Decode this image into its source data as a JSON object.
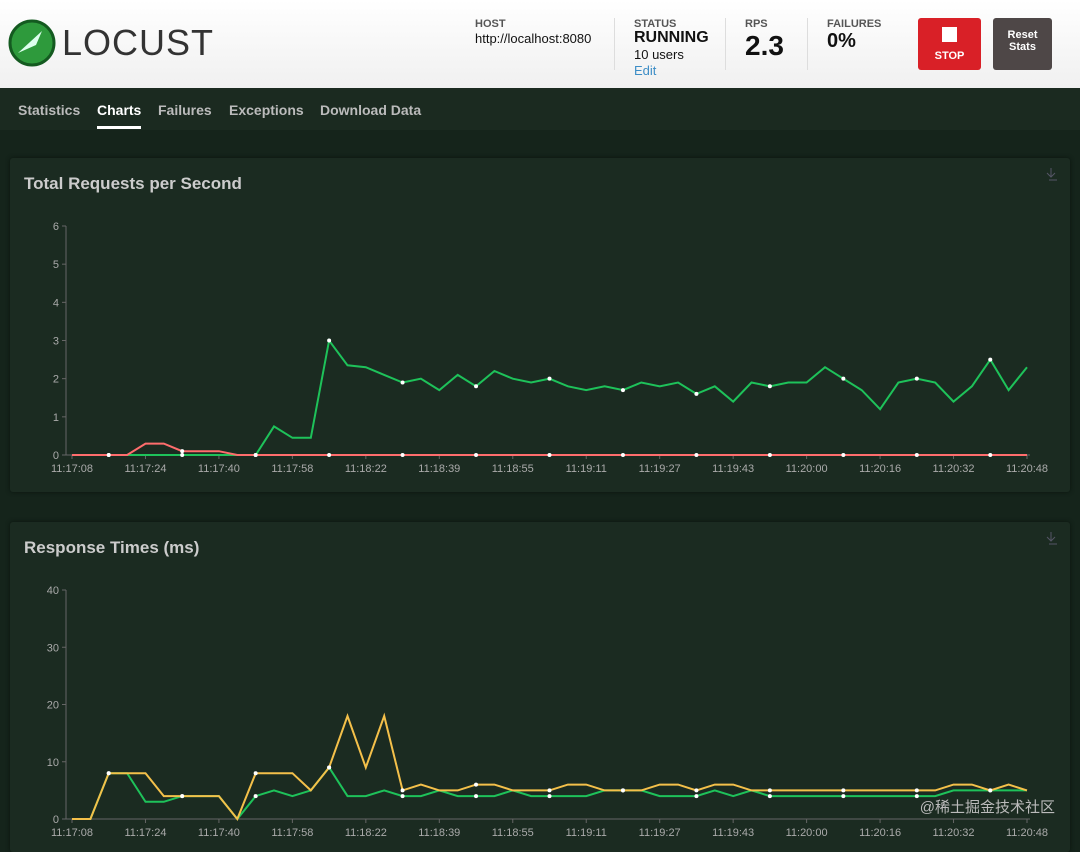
{
  "header": {
    "logo": "LOCUST",
    "host_label": "HOST",
    "host": "http://localhost:8080",
    "status_label": "STATUS",
    "status": "RUNNING",
    "users": "10 users",
    "edit": "Edit",
    "rps_label": "RPS",
    "rps": "2.3",
    "failures_label": "FAILURES",
    "failures": "0%",
    "stop": "STOP",
    "reset": "Reset Stats"
  },
  "tabs": [
    "Statistics",
    "Charts",
    "Failures",
    "Exceptions",
    "Download Data"
  ],
  "watermark": "@稀土掘金技术社区",
  "chart_data": [
    {
      "type": "line",
      "title": "Total Requests per Second",
      "categories": [
        "11:17:08",
        null,
        null,
        null,
        "11:17:24",
        null,
        null,
        null,
        "11:17:40",
        null,
        null,
        null,
        "11:17:58",
        null,
        null,
        null,
        "11:18:22",
        null,
        null,
        null,
        "11:18:39",
        null,
        null,
        null,
        "11:18:55",
        null,
        null,
        null,
        "11:19:11",
        null,
        null,
        null,
        "11:19:27",
        null,
        null,
        null,
        "11:19:43",
        null,
        null,
        null,
        "11:20:00",
        null,
        null,
        null,
        "11:20:16",
        null,
        null,
        null,
        "11:20:32",
        null,
        null,
        null,
        "11:20:48"
      ],
      "ylim": [
        0,
        6
      ],
      "yticks": [
        0,
        1,
        2,
        3,
        4,
        5,
        6
      ],
      "grid": false,
      "series": [
        {
          "color": "#1ec25a",
          "values": [
            0,
            0,
            0,
            0,
            0,
            0,
            0,
            0,
            0,
            0,
            0,
            0.75,
            0.45,
            0.45,
            3.0,
            2.35,
            2.3,
            2.1,
            1.9,
            2.0,
            1.7,
            2.1,
            1.8,
            2.2,
            2.0,
            1.9,
            2.0,
            1.8,
            1.7,
            1.8,
            1.7,
            1.9,
            1.8,
            1.9,
            1.6,
            1.8,
            1.4,
            1.9,
            1.8,
            1.9,
            1.9,
            2.3,
            2.0,
            1.7,
            1.2,
            1.9,
            2.0,
            1.9,
            1.4,
            1.8,
            2.5,
            1.7,
            2.3
          ]
        },
        {
          "color": "#ff6d6d",
          "values": [
            0,
            0,
            0,
            0,
            0.3,
            0.3,
            0.1,
            0.1,
            0.1,
            0,
            0,
            0,
            0,
            0,
            0,
            0,
            0,
            0,
            0,
            0,
            0,
            0,
            0,
            0,
            0,
            0,
            0,
            0,
            0,
            0,
            0,
            0,
            0,
            0,
            0,
            0,
            0,
            0,
            0,
            0,
            0,
            0,
            0,
            0,
            0,
            0,
            0,
            0,
            0,
            0,
            0,
            0,
            0
          ]
        }
      ]
    },
    {
      "type": "line",
      "title": "Response Times (ms)",
      "categories": [
        "11:17:08",
        null,
        null,
        null,
        "11:17:24",
        null,
        null,
        null,
        "11:17:40",
        null,
        null,
        null,
        "11:17:58",
        null,
        null,
        null,
        "11:18:22",
        null,
        null,
        null,
        "11:18:39",
        null,
        null,
        null,
        "11:18:55",
        null,
        null,
        null,
        "11:19:11",
        null,
        null,
        null,
        "11:19:27",
        null,
        null,
        null,
        "11:19:43",
        null,
        null,
        null,
        "11:20:00",
        null,
        null,
        null,
        "11:20:16",
        null,
        null,
        null,
        "11:20:32",
        null,
        null,
        null,
        "11:20:48"
      ],
      "ylim": [
        0,
        40
      ],
      "yticks": [
        0,
        10,
        20,
        30,
        40
      ],
      "grid": false,
      "series": [
        {
          "color": "#1ec25a",
          "values": [
            0,
            0,
            8,
            8,
            3,
            3,
            4,
            4,
            4,
            0,
            4,
            5,
            4,
            5,
            9,
            4,
            4,
            5,
            4,
            4,
            5,
            4,
            4,
            4,
            5,
            4,
            4,
            4,
            4,
            5,
            5,
            5,
            4,
            4,
            4,
            5,
            4,
            5,
            4,
            4,
            4,
            4,
            4,
            4,
            4,
            4,
            4,
            4,
            5,
            5,
            5,
            5,
            5
          ]
        },
        {
          "color": "#f4c04a",
          "values": [
            0,
            0,
            8,
            8,
            8,
            4,
            4,
            4,
            4,
            0,
            8,
            8,
            8,
            5,
            9,
            18,
            9,
            18,
            5,
            6,
            5,
            5,
            6,
            6,
            5,
            5,
            5,
            6,
            6,
            5,
            5,
            5,
            6,
            6,
            5,
            6,
            6,
            5,
            5,
            5,
            5,
            5,
            5,
            5,
            5,
            5,
            5,
            5,
            6,
            6,
            5,
            6,
            5
          ]
        }
      ]
    }
  ]
}
